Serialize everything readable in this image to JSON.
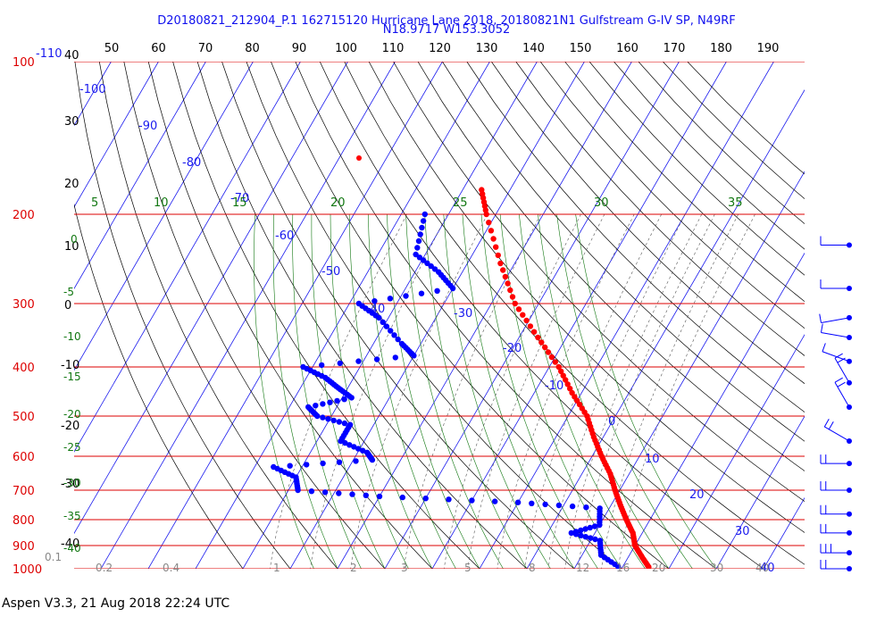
{
  "header": {
    "line1": "D20180821_212904_P.1 162715120 Hurricane Lane 2018, 20180821N1 Gulfstream G-IV SP, N49RF",
    "line2": "N18.9717 W153.3052"
  },
  "footer": "Aspen V3.3, 21 Aug 2018  22:24 UTC",
  "colors": {
    "temperature": "#ff0000",
    "dewpoint": "#0000ff",
    "isobar": "#dd0000",
    "isotherm": "#1a1aee",
    "dry_adiabat": "#000000",
    "moist_adiabat": "#117711",
    "mixing_ratio": "#555555",
    "wind": "#0000ff"
  },
  "chart_data": {
    "type": "skew-t",
    "top_temperature_labels": [
      "50",
      "60",
      "70",
      "80",
      "90",
      "100",
      "110",
      "120",
      "130",
      "140",
      "150",
      "160",
      "170",
      "180",
      "190"
    ],
    "theta_labels": [
      "40",
      "30",
      "20",
      "10",
      "0",
      "-10",
      "-20",
      "-30",
      "-40"
    ],
    "isotherm_labels": [
      "-110",
      "-100",
      "-90",
      "-80",
      "-70",
      "-60",
      "-50",
      "-40",
      "-30",
      "-20",
      "-10",
      "0",
      "10",
      "20",
      "30",
      "40"
    ],
    "theta_e_labels": [
      "5",
      "10",
      "15",
      "20",
      "25",
      "30",
      "35"
    ],
    "theta_e_left_labels": [
      "0",
      "-5",
      "-10",
      "-15",
      "-20",
      "-25",
      "-30",
      "-35",
      "-40"
    ],
    "mixing_ratio_labels": [
      "0.1",
      "0.2",
      "0.4",
      "1",
      "2",
      "3",
      "5",
      "8",
      "12",
      "16",
      "20",
      "30",
      "40"
    ],
    "pressure_levels": [
      100,
      200,
      300,
      400,
      500,
      600,
      700,
      800,
      900,
      1000
    ],
    "pressure_labels": [
      "100",
      "200",
      "300",
      "400",
      "500",
      "600",
      "700",
      "800",
      "900",
      "1000"
    ],
    "temperature_profile": [
      {
        "p": 179,
        "t": -56
      },
      {
        "p": 200,
        "t": -52
      },
      {
        "p": 250,
        "t": -43
      },
      {
        "p": 300,
        "t": -35
      },
      {
        "p": 350,
        "t": -26
      },
      {
        "p": 400,
        "t": -18
      },
      {
        "p": 450,
        "t": -12
      },
      {
        "p": 500,
        "t": -6
      },
      {
        "p": 550,
        "t": -2
      },
      {
        "p": 600,
        "t": 2
      },
      {
        "p": 650,
        "t": 6
      },
      {
        "p": 700,
        "t": 9
      },
      {
        "p": 750,
        "t": 12
      },
      {
        "p": 800,
        "t": 15
      },
      {
        "p": 850,
        "t": 18
      },
      {
        "p": 900,
        "t": 20
      },
      {
        "p": 950,
        "t": 23
      },
      {
        "p": 1000,
        "t": 26
      }
    ],
    "dewpoint_profile": [
      {
        "p": 200,
        "td": -65
      },
      {
        "p": 240,
        "td": -62
      },
      {
        "p": 260,
        "td": -55
      },
      {
        "p": 280,
        "td": -50
      },
      {
        "p": 300,
        "td": -68
      },
      {
        "p": 320,
        "td": -62
      },
      {
        "p": 360,
        "td": -54
      },
      {
        "p": 380,
        "td": -50
      },
      {
        "p": 400,
        "td": -72
      },
      {
        "p": 420,
        "td": -66
      },
      {
        "p": 440,
        "td": -62
      },
      {
        "p": 460,
        "td": -58
      },
      {
        "p": 480,
        "td": -66
      },
      {
        "p": 500,
        "td": -63
      },
      {
        "p": 520,
        "td": -55
      },
      {
        "p": 560,
        "td": -55
      },
      {
        "p": 590,
        "td": -48
      },
      {
        "p": 610,
        "td": -46
      },
      {
        "p": 630,
        "td": -66
      },
      {
        "p": 660,
        "td": -60
      },
      {
        "p": 700,
        "td": -58
      },
      {
        "p": 720,
        "td": -40
      },
      {
        "p": 740,
        "td": -10
      },
      {
        "p": 760,
        "td": 8
      },
      {
        "p": 820,
        "td": 10
      },
      {
        "p": 850,
        "td": 5
      },
      {
        "p": 880,
        "td": 12
      },
      {
        "p": 940,
        "td": 14
      },
      {
        "p": 1000,
        "td": 20
      }
    ],
    "wind_barbs": [
      {
        "p": 230,
        "dir": 90,
        "spd": 5
      },
      {
        "p": 280,
        "dir": 90,
        "spd": 5
      },
      {
        "p": 320,
        "dir": 80,
        "spd": 10
      },
      {
        "p": 350,
        "dir": 100,
        "spd": 10
      },
      {
        "p": 390,
        "dir": 110,
        "spd": 10
      },
      {
        "p": 430,
        "dir": 150,
        "spd": 15
      },
      {
        "p": 480,
        "dir": 150,
        "spd": 20
      },
      {
        "p": 560,
        "dir": 120,
        "spd": 20
      },
      {
        "p": 620,
        "dir": 90,
        "spd": 20
      },
      {
        "p": 700,
        "dir": 90,
        "spd": 20
      },
      {
        "p": 780,
        "dir": 90,
        "spd": 20
      },
      {
        "p": 850,
        "dir": 90,
        "spd": 20
      },
      {
        "p": 930,
        "dir": 90,
        "spd": 25
      },
      {
        "p": 1000,
        "dir": 90,
        "spd": 20
      }
    ]
  }
}
